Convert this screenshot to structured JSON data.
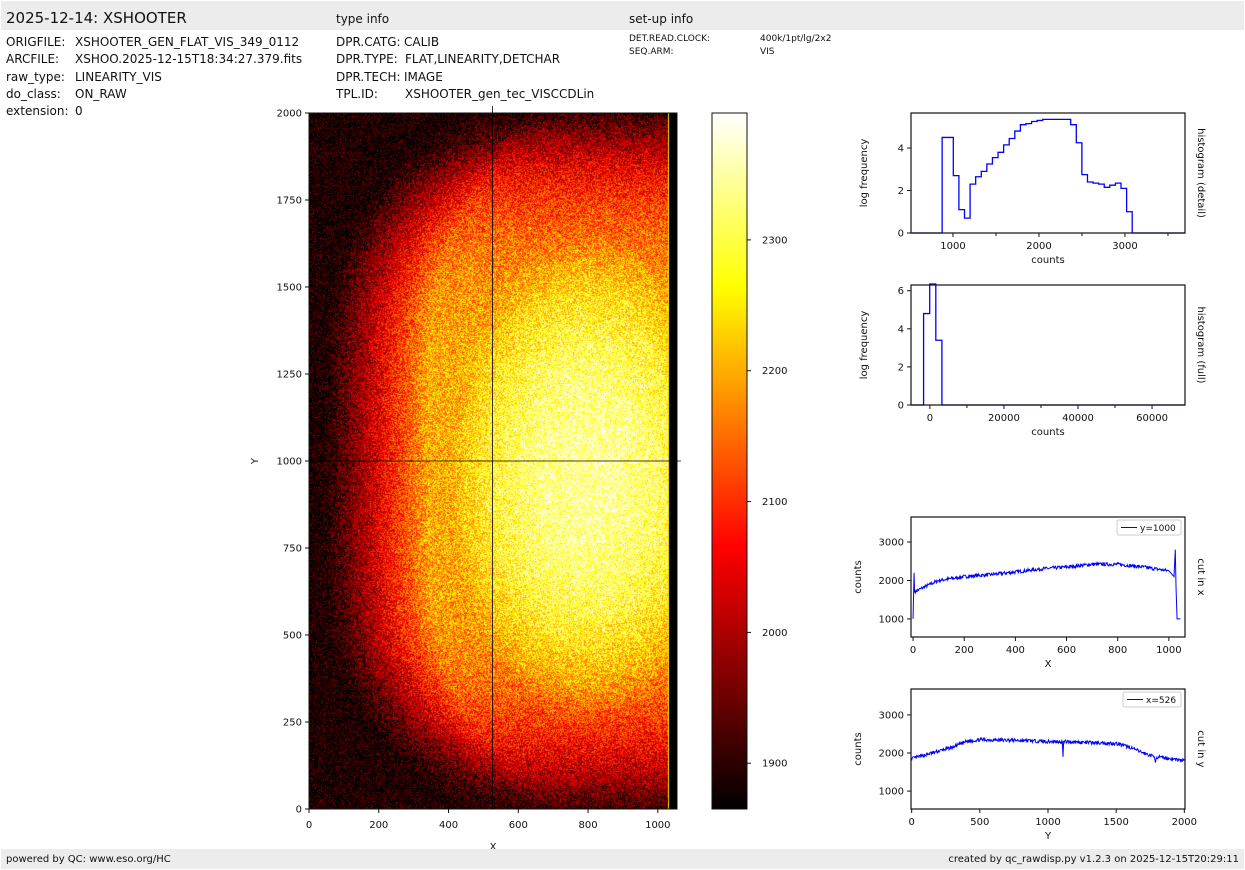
{
  "header": {
    "title": "2025-12-14: XSHOOTER",
    "type_info": "type info",
    "setup_info": "set-up info"
  },
  "file_info": [
    {
      "key": "ORIGFILE:",
      "value": "XSHOOTER_GEN_FLAT_VIS_349_0112"
    },
    {
      "key": "ARCFILE:",
      "value": "XSHOO.2025-12-15T18:34:27.379.fits"
    },
    {
      "key": "raw_type:",
      "value": "LINEARITY_VIS"
    },
    {
      "key": "do_class:",
      "value": "ON_RAW"
    },
    {
      "key": "extension:",
      "value": "0"
    }
  ],
  "type_info": [
    {
      "key": "DPR.CATG:",
      "value": "CALIB"
    },
    {
      "key": "DPR.TYPE:",
      "value": "FLAT,LINEARITY,DETCHAR"
    },
    {
      "key": "DPR.TECH:",
      "value": "IMAGE"
    },
    {
      "key": "TPL.ID:",
      "value": "XSHOOTER_gen_tec_VISCCDLin"
    }
  ],
  "setup_info": [
    {
      "key": "DET.READ.CLOCK:",
      "value": "400k/1pt/lg/2x2"
    },
    {
      "key": "SEQ.ARM:",
      "value": "VIS"
    }
  ],
  "footer": {
    "left": "powered by QC: www.eso.org/HC",
    "right": "created by qc_rawdisp.py v1.2.3 on 2025-12-15T20:29:11"
  },
  "colors": {
    "line": "#0000ff",
    "bar": "#ececec"
  },
  "chart_data": [
    {
      "type": "heatmap",
      "name": "image",
      "xlabel": "X",
      "ylabel": "Y",
      "xlim": [
        0,
        1055
      ],
      "ylim": [
        0,
        2000
      ],
      "xticks": [
        0,
        200,
        400,
        600,
        800,
        1000
      ],
      "yticks": [
        0,
        250,
        500,
        750,
        1000,
        1250,
        1500,
        1750,
        2000
      ],
      "colormap": "hot",
      "crosshair": {
        "x": 526,
        "y": 1000
      },
      "colorbar": {
        "range": [
          1865,
          2397
        ],
        "ticks": [
          1900,
          2000,
          2100,
          2200,
          2300
        ]
      }
    },
    {
      "type": "line",
      "name": "histogram-detail",
      "xlabel": "counts",
      "ylabel": "log frequency",
      "side_label": "histogram (detail)",
      "xlim": [
        512,
        3698
      ],
      "ylim": [
        0,
        5.65
      ],
      "xticks": [
        1000,
        2000,
        3000
      ],
      "yticks": [
        0,
        2,
        4
      ],
      "bin_start": 874,
      "bin_width": 65,
      "values": [
        4.5,
        4.5,
        2.7,
        1.1,
        0.7,
        2.3,
        2.65,
        2.9,
        3.25,
        3.55,
        3.8,
        4.15,
        4.45,
        4.8,
        5.1,
        5.15,
        5.25,
        5.3,
        5.35,
        5.35,
        5.35,
        5.35,
        5.35,
        5.1,
        4.25,
        2.75,
        2.4,
        2.35,
        2.3,
        2.15,
        2.25,
        2.35,
        2.1,
        1.0
      ]
    },
    {
      "type": "line",
      "name": "histogram-full",
      "xlabel": "counts",
      "ylabel": "log frequency",
      "side_label": "histogram (full)",
      "xlim": [
        -5100,
        68900
      ],
      "ylim": [
        0,
        6.3
      ],
      "xticks": [
        0,
        20000,
        40000,
        60000
      ],
      "yticks": [
        0,
        2,
        4,
        6
      ],
      "bin_start": -1700,
      "bin_width": 1650,
      "values": [
        4.8,
        6.35,
        3.4
      ]
    },
    {
      "type": "line",
      "name": "cut-x",
      "xlabel": "X",
      "ylabel": "counts",
      "side_label": "cut in x",
      "legend": "y=1000",
      "xlim": [
        -8,
        1063
      ],
      "ylim": [
        530,
        3650
      ],
      "xticks": [
        0,
        200,
        400,
        600,
        800,
        1000
      ],
      "yticks": [
        1000,
        2000,
        3000
      ],
      "x": [
        0,
        4,
        6,
        10,
        50,
        100,
        200,
        300,
        400,
        500,
        600,
        700,
        800,
        900,
        1000,
        1020,
        1025,
        1028,
        1032,
        1045
      ],
      "y": [
        1000,
        2200,
        1700,
        1720,
        1850,
        2000,
        2100,
        2150,
        2220,
        2300,
        2350,
        2420,
        2420,
        2350,
        2250,
        2100,
        2800,
        1800,
        1000,
        1000
      ]
    },
    {
      "type": "line",
      "name": "cut-y",
      "xlabel": "Y",
      "ylabel": "counts",
      "side_label": "cut in y",
      "legend": "x=526",
      "xlim": [
        -5,
        2005
      ],
      "ylim": [
        530,
        3680
      ],
      "xticks": [
        0,
        500,
        1000,
        1500,
        2000
      ],
      "yticks": [
        1000,
        2000,
        3000
      ],
      "x": [
        0,
        200,
        300,
        400,
        500,
        800,
        1000,
        1105,
        1110,
        1115,
        1500,
        1600,
        1700,
        1780,
        1788,
        1795,
        2000
      ],
      "y": [
        1850,
        2050,
        2150,
        2300,
        2350,
        2330,
        2300,
        2300,
        1900,
        2300,
        2250,
        2150,
        2000,
        1900,
        1750,
        1900,
        1800
      ]
    }
  ]
}
